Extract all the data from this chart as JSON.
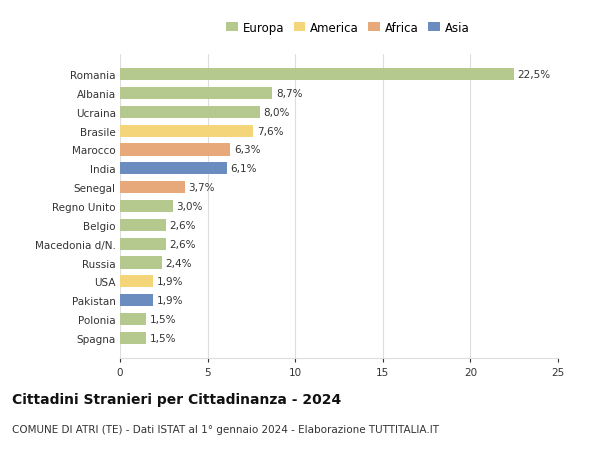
{
  "countries": [
    "Romania",
    "Albania",
    "Ucraina",
    "Brasile",
    "Marocco",
    "India",
    "Senegal",
    "Regno Unito",
    "Belgio",
    "Macedonia d/N.",
    "Russia",
    "USA",
    "Pakistan",
    "Polonia",
    "Spagna"
  ],
  "values": [
    22.5,
    8.7,
    8.0,
    7.6,
    6.3,
    6.1,
    3.7,
    3.0,
    2.6,
    2.6,
    2.4,
    1.9,
    1.9,
    1.5,
    1.5
  ],
  "labels": [
    "22,5%",
    "8,7%",
    "8,0%",
    "7,6%",
    "6,3%",
    "6,1%",
    "3,7%",
    "3,0%",
    "2,6%",
    "2,6%",
    "2,4%",
    "1,9%",
    "1,9%",
    "1,5%",
    "1,5%"
  ],
  "continents": [
    "Europa",
    "Europa",
    "Europa",
    "America",
    "Africa",
    "Asia",
    "Africa",
    "Europa",
    "Europa",
    "Europa",
    "Europa",
    "America",
    "Asia",
    "Europa",
    "Europa"
  ],
  "continent_colors": {
    "Europa": "#b5c98e",
    "America": "#f5d57a",
    "Africa": "#e8a97a",
    "Asia": "#6b8cbf"
  },
  "legend_order": [
    "Europa",
    "America",
    "Africa",
    "Asia"
  ],
  "title": "Cittadini Stranieri per Cittadinanza - 2024",
  "subtitle": "COMUNE DI ATRI (TE) - Dati ISTAT al 1° gennaio 2024 - Elaborazione TUTTITALIA.IT",
  "xlim": [
    0,
    25
  ],
  "xticks": [
    0,
    5,
    10,
    15,
    20,
    25
  ],
  "background_color": "#ffffff",
  "bar_height": 0.65,
  "grid_color": "#dddddd",
  "text_color": "#333333",
  "label_fontsize": 7.5,
  "tick_fontsize": 7.5,
  "title_fontsize": 10,
  "subtitle_fontsize": 7.5,
  "legend_fontsize": 8.5
}
